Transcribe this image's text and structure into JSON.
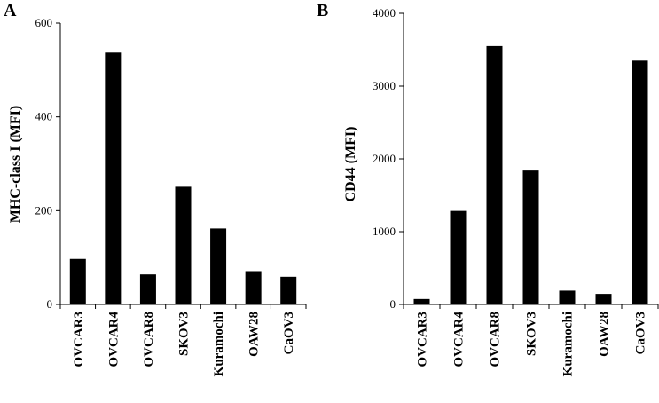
{
  "chart_data": [
    {
      "panel": "A",
      "type": "bar",
      "ylabel": "MHC-class I (MFI)",
      "xlabel": "",
      "ylim": [
        0,
        600
      ],
      "yticks": [
        0,
        200,
        400,
        600
      ],
      "categories": [
        "OVCAR3",
        "OVCAR4",
        "OVCAR8",
        "SKOV3",
        "Kuramochi",
        "OAW28",
        "CaOV3"
      ],
      "values": [
        97,
        537,
        64,
        251,
        162,
        71,
        59
      ],
      "grid": false,
      "legend": "none",
      "bar_color": "#000000"
    },
    {
      "panel": "B",
      "type": "bar",
      "ylabel": "CD44 (MFI)",
      "xlabel": "",
      "ylim": [
        0,
        4000
      ],
      "yticks": [
        0,
        1000,
        2000,
        3000,
        4000
      ],
      "categories": [
        "OVCAR3",
        "OVCAR4",
        "OVCAR8",
        "SKOV3",
        "Kuramochi",
        "OAW28",
        "CaOV3"
      ],
      "values": [
        75,
        1285,
        3550,
        1840,
        190,
        145,
        3350
      ],
      "grid": false,
      "legend": "none",
      "bar_color": "#000000"
    }
  ]
}
